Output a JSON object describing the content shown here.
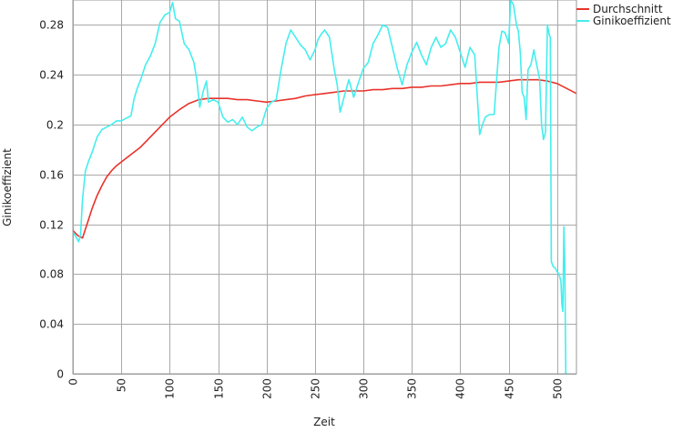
{
  "chart_data": {
    "type": "line",
    "xlabel": "Zeit",
    "ylabel": "Ginikoeffizient",
    "xlim": [
      0,
      520
    ],
    "ylim": [
      0,
      0.3
    ],
    "xticks": [
      0,
      50,
      100,
      150,
      200,
      250,
      300,
      350,
      400,
      450,
      500
    ],
    "yticks": [
      0,
      0.04,
      0.08,
      0.12,
      0.16,
      0.2,
      0.24,
      0.28
    ],
    "ytick_labels": [
      "0",
      "0.04",
      "0.08",
      "0.12",
      "0.16",
      "0.2",
      "0.24",
      "0.28"
    ],
    "grid": true,
    "legend": "top-right",
    "series": [
      {
        "name": "Durchschnitt",
        "color": "#e8332b",
        "x": [
          0,
          5,
          10,
          15,
          20,
          25,
          30,
          35,
          40,
          45,
          50,
          60,
          70,
          80,
          90,
          100,
          110,
          120,
          130,
          140,
          150,
          160,
          170,
          180,
          190,
          200,
          210,
          220,
          230,
          240,
          250,
          260,
          270,
          280,
          290,
          300,
          310,
          320,
          330,
          340,
          350,
          360,
          370,
          380,
          390,
          400,
          410,
          420,
          430,
          440,
          450,
          460,
          470,
          480,
          490,
          500,
          510,
          520
        ],
        "values": [
          0.115,
          0.111,
          0.109,
          0.121,
          0.133,
          0.143,
          0.151,
          0.158,
          0.163,
          0.167,
          0.17,
          0.176,
          0.182,
          0.19,
          0.198,
          0.206,
          0.212,
          0.217,
          0.22,
          0.221,
          0.221,
          0.221,
          0.22,
          0.22,
          0.219,
          0.218,
          0.219,
          0.22,
          0.221,
          0.223,
          0.224,
          0.225,
          0.226,
          0.227,
          0.227,
          0.227,
          0.228,
          0.228,
          0.229,
          0.229,
          0.23,
          0.23,
          0.231,
          0.231,
          0.232,
          0.233,
          0.233,
          0.234,
          0.234,
          0.234,
          0.235,
          0.236,
          0.236,
          0.236,
          0.235,
          0.233,
          0.229,
          0.225
        ]
      },
      {
        "name": "Ginikoeffizient",
        "color": "#44eeee",
        "x": [
          0,
          3,
          6,
          8,
          10,
          13,
          16,
          20,
          25,
          30,
          35,
          40,
          45,
          50,
          55,
          60,
          63,
          66,
          70,
          75,
          80,
          85,
          90,
          95,
          100,
          103,
          106,
          110,
          115,
          120,
          125,
          128,
          131,
          135,
          138,
          140,
          145,
          150,
          155,
          160,
          165,
          170,
          175,
          180,
          185,
          190,
          195,
          200,
          205,
          210,
          215,
          220,
          225,
          230,
          235,
          240,
          245,
          250,
          253,
          256,
          260,
          265,
          270,
          273,
          276,
          280,
          285,
          290,
          295,
          300,
          305,
          310,
          315,
          320,
          325,
          330,
          335,
          340,
          345,
          350,
          355,
          360,
          365,
          370,
          375,
          380,
          385,
          390,
          395,
          400,
          405,
          410,
          415,
          418,
          420,
          423,
          426,
          430,
          435,
          440,
          443,
          446,
          448,
          450,
          452,
          455,
          458,
          460,
          462,
          464,
          466,
          468,
          470,
          473,
          476,
          478,
          480,
          482,
          484,
          486,
          488,
          490,
          491,
          492,
          493,
          494,
          496,
          498,
          500,
          502,
          504,
          505,
          506,
          507,
          508,
          509,
          510,
          511
        ],
        "values": [
          0.114,
          0.11,
          0.106,
          0.112,
          0.14,
          0.163,
          0.17,
          0.178,
          0.19,
          0.196,
          0.198,
          0.2,
          0.203,
          0.203,
          0.205,
          0.207,
          0.22,
          0.228,
          0.236,
          0.248,
          0.255,
          0.265,
          0.282,
          0.288,
          0.29,
          0.298,
          0.285,
          0.283,
          0.265,
          0.26,
          0.25,
          0.236,
          0.214,
          0.228,
          0.235,
          0.218,
          0.22,
          0.218,
          0.206,
          0.202,
          0.204,
          0.2,
          0.206,
          0.198,
          0.195,
          0.198,
          0.2,
          0.213,
          0.218,
          0.22,
          0.244,
          0.265,
          0.276,
          0.27,
          0.264,
          0.26,
          0.252,
          0.26,
          0.268,
          0.272,
          0.276,
          0.27,
          0.244,
          0.232,
          0.21,
          0.222,
          0.236,
          0.222,
          0.234,
          0.245,
          0.25,
          0.265,
          0.272,
          0.28,
          0.278,
          0.262,
          0.245,
          0.232,
          0.248,
          0.258,
          0.266,
          0.256,
          0.248,
          0.262,
          0.27,
          0.262,
          0.265,
          0.276,
          0.27,
          0.258,
          0.246,
          0.262,
          0.256,
          0.218,
          0.192,
          0.2,
          0.206,
          0.208,
          0.208,
          0.262,
          0.275,
          0.274,
          0.27,
          0.265,
          0.3,
          0.296,
          0.28,
          0.275,
          0.258,
          0.226,
          0.222,
          0.204,
          0.244,
          0.248,
          0.26,
          0.252,
          0.244,
          0.236,
          0.2,
          0.188,
          0.194,
          0.28,
          0.276,
          0.272,
          0.27,
          0.09,
          0.086,
          0.085,
          0.082,
          0.08,
          0.074,
          0.056,
          0.05,
          0.118,
          0.088,
          0.0,
          0.0,
          0.0
        ]
      }
    ]
  }
}
